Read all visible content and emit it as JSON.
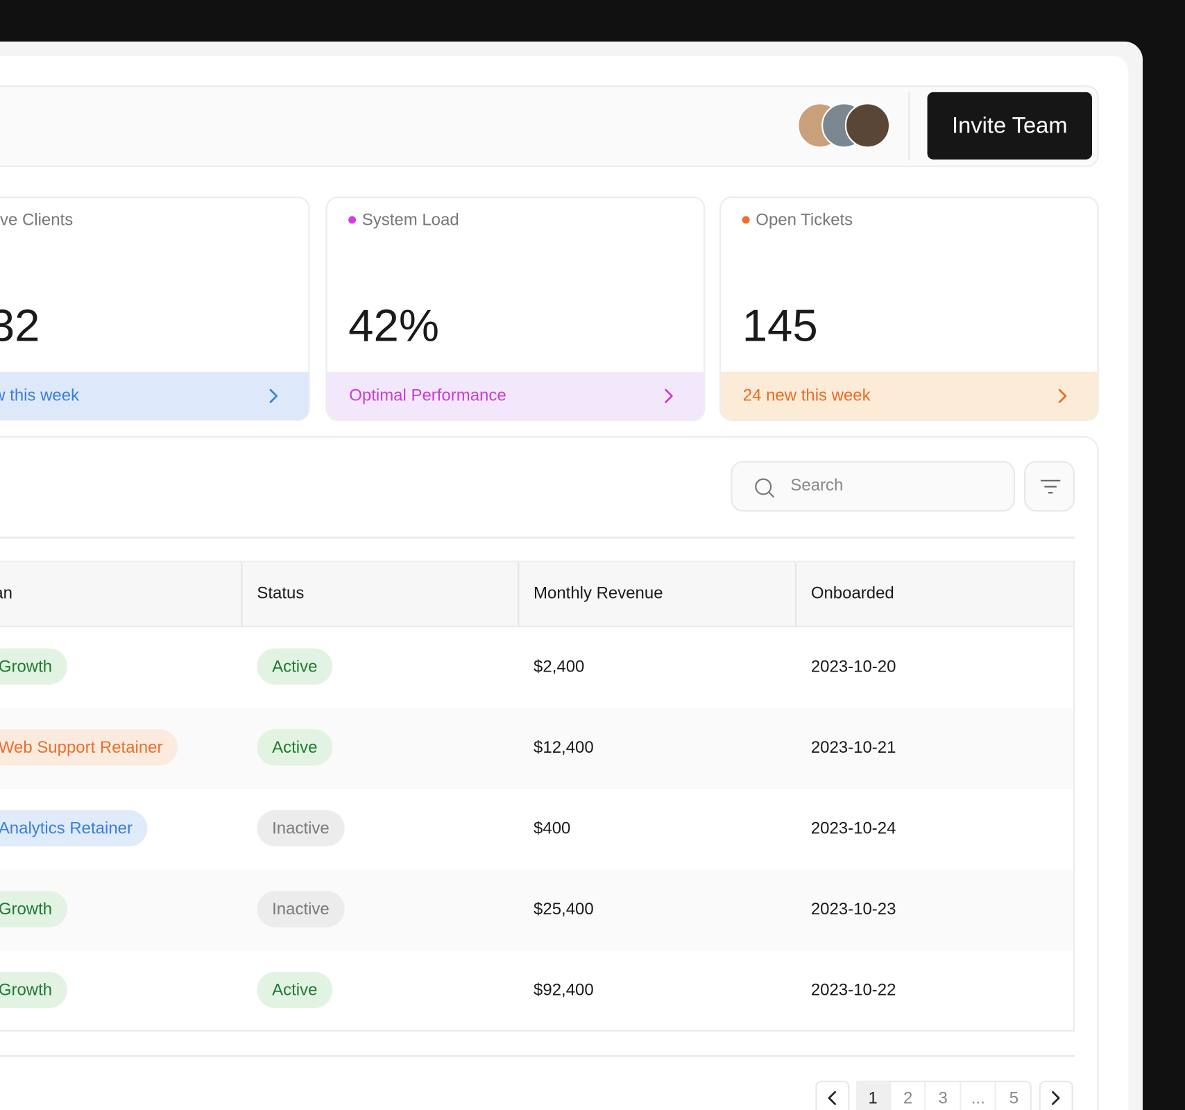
{
  "header": {
    "button": "Invite Team"
  },
  "stats": [
    {
      "label": "ve Clients",
      "value": "32",
      "footer": "w this week",
      "dot": null,
      "bg": "#dde9fb",
      "fg": "#3b7de0"
    },
    {
      "label": "System Load",
      "value": "42%",
      "footer": "Optimal Performance",
      "dot": "#d63ae0",
      "bg": "#f3e8fb",
      "fg": "#c93adb"
    },
    {
      "label": "Open Tickets",
      "value": "145",
      "footer": "24 new this week",
      "dot": "#f26b2a",
      "bg": "#fcebd7",
      "fg": "#ee6a25"
    }
  ],
  "search": {
    "placeholder": "Search"
  },
  "table": {
    "headers": [
      "an",
      "Status",
      "Monthly Revenue",
      "Onboarded"
    ],
    "rows": [
      [
        {
          "text": "Growth",
          "tone": "green"
        },
        {
          "text": "Active",
          "tone": "green"
        },
        "$2,400",
        "2023-10-20"
      ],
      [
        {
          "text": "Web Support Retainer",
          "tone": "orange"
        },
        {
          "text": "Active",
          "tone": "green"
        },
        "$12,400",
        "2023-10-21"
      ],
      [
        {
          "text": "Analytics Retainer",
          "tone": "blue"
        },
        {
          "text": "Inactive",
          "tone": "grey"
        },
        "$400",
        "2023-10-24"
      ],
      [
        {
          "text": "Growth",
          "tone": "green"
        },
        {
          "text": "Inactive",
          "tone": "grey"
        },
        "$25,400",
        "2023-10-23"
      ],
      [
        {
          "text": "Growth",
          "tone": "green"
        },
        {
          "text": "Active",
          "tone": "green"
        },
        "$92,400",
        "2023-10-22"
      ]
    ]
  },
  "pagination": {
    "pages": [
      "1",
      "2",
      "3",
      "...",
      "5"
    ],
    "current": 0
  }
}
